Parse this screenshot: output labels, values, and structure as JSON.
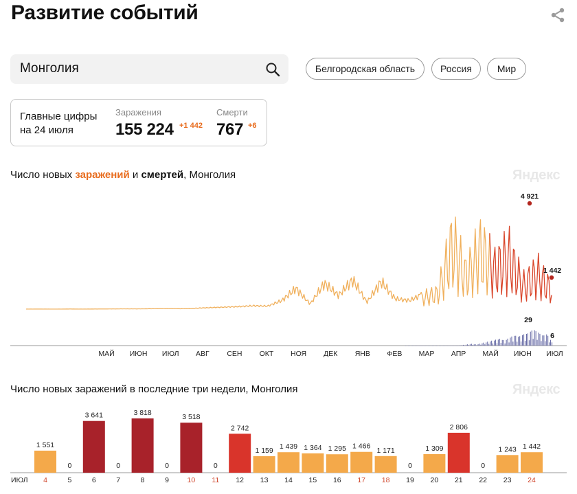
{
  "page_title": "Развитие событий",
  "search": {
    "value": "Монголия"
  },
  "chips": [
    "Белгородская область",
    "Россия",
    "Мир"
  ],
  "main_figures": {
    "label_line1": "Главные цифры",
    "label_line2": "на 24 июля",
    "infections": {
      "label": "Заражения",
      "value": "155 224",
      "delta": "+1 442"
    },
    "deaths": {
      "label": "Смерти",
      "value": "767",
      "delta": "+6"
    }
  },
  "chart1": {
    "title_start": "Число новых ",
    "title_infections": "заражений",
    "title_middle": " и ",
    "title_deaths": "смертей",
    "title_end": ", Монголия",
    "watermark": "Яндекс",
    "months": [
      "МАЙ",
      "ИЮН",
      "ИЮЛ",
      "АВГ",
      "СЕН",
      "ОКТ",
      "НОЯ",
      "ДЕК",
      "ЯНВ",
      "ФЕВ",
      "МАР",
      "АПР",
      "МАЙ",
      "ИЮН",
      "ИЮЛ"
    ],
    "annotations": {
      "peak_infections": "4 921",
      "last_infections": "1 442",
      "peak_deaths": "29",
      "last_deaths": "6"
    }
  },
  "chart2": {
    "title": "Число новых заражений в последние три недели, Монголия",
    "watermark": "Яндекс",
    "month_label": "ИЮЛ"
  },
  "chart_data": [
    {
      "type": "line",
      "title": "Число новых заражений и смертей, Монголия",
      "series": [
        {
          "name": "заражений",
          "color": "#e86d1f",
          "period": "Apr 2020 – Jul 24 2021",
          "peak": 4921,
          "last": 1442,
          "sampled_values": [
            5,
            8,
            3,
            10,
            6,
            12,
            15,
            20,
            18,
            30,
            40,
            25,
            60,
            90,
            120,
            150,
            200,
            180,
            500,
            1200,
            300,
            1500,
            800,
            1700,
            400,
            1600,
            600,
            500,
            900,
            1200,
            4921,
            2500,
            4500,
            3000,
            4000,
            1800,
            2700,
            1442
          ]
        },
        {
          "name": "смертей",
          "color": "#5a63a8",
          "peak": 29,
          "last": 6,
          "sampled_values": [
            0,
            0,
            0,
            0,
            0,
            0,
            0,
            0,
            0,
            0,
            0,
            0,
            1,
            2,
            3,
            2,
            4,
            6,
            8,
            10,
            12,
            9,
            14,
            18,
            16,
            20,
            22,
            29,
            24,
            18,
            20,
            6
          ]
        }
      ],
      "x_ticks": [
        "МАЙ",
        "ИЮН",
        "ИЮЛ",
        "АВГ",
        "СЕН",
        "ОКТ",
        "НОЯ",
        "ДЕК",
        "ЯНВ",
        "ФЕВ",
        "МАР",
        "АПР",
        "МАЙ",
        "ИЮН",
        "ИЮЛ"
      ]
    },
    {
      "type": "bar",
      "title": "Число новых заражений в последние три недели, Монголия",
      "month": "ИЮЛ",
      "categories": [
        "4",
        "5",
        "6",
        "7",
        "8",
        "9",
        "10",
        "11",
        "12",
        "13",
        "14",
        "15",
        "16",
        "17",
        "18",
        "19",
        "20",
        "21",
        "22",
        "23",
        "24"
      ],
      "values": [
        1551,
        0,
        3641,
        0,
        3818,
        0,
        3518,
        0,
        2742,
        1159,
        1439,
        1364,
        1295,
        1466,
        1171,
        0,
        1309,
        2806,
        0,
        1243,
        1442
      ],
      "labels": [
        "1 551",
        "0",
        "3 641",
        "0",
        "3 818",
        "0",
        "3 518",
        "0",
        "2 742",
        "1 159",
        "1 439",
        "1 364",
        "1 295",
        "1 466",
        "1 171",
        "0",
        "1 309",
        "2 806",
        "0",
        "1 243",
        "1 442"
      ],
      "weekend": [
        true,
        false,
        false,
        false,
        false,
        false,
        true,
        true,
        false,
        false,
        false,
        false,
        false,
        true,
        true,
        false,
        false,
        false,
        false,
        false,
        true
      ]
    }
  ]
}
